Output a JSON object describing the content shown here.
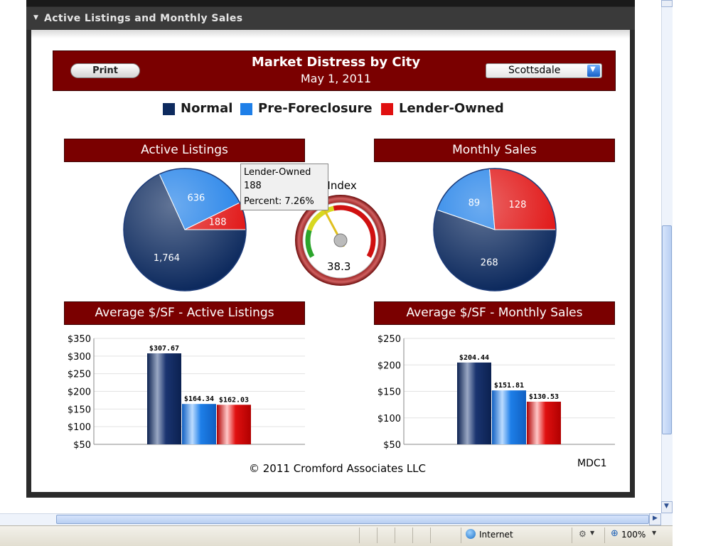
{
  "panel": {
    "title": "Active Listings and Monthly Sales"
  },
  "banner": {
    "print_label": "Print",
    "title": "Market Distress by City",
    "date": "May 1, 2011",
    "city": "Scottsdale"
  },
  "legend": [
    {
      "label": "Normal",
      "color": "#0d2a5e"
    },
    {
      "label": "Pre-Foreclosure",
      "color": "#1e7fe8"
    },
    {
      "label": "Lender-Owned",
      "color": "#e01010"
    }
  ],
  "tooltip": {
    "category": "Lender-Owned",
    "value": "188",
    "percent": "Percent: 7.26%"
  },
  "gauge": {
    "title_fragment": "ss Index",
    "value_text": "38.3",
    "value": 38.3
  },
  "sections": {
    "active_listings": "Active Listings",
    "monthly_sales": "Monthly Sales",
    "avg_active": "Average $/SF - Active Listings",
    "avg_sales": "Average $/SF - Monthly Sales"
  },
  "chart_data": [
    {
      "type": "pie",
      "title": "Active Listings",
      "categories": [
        "Normal",
        "Pre-Foreclosure",
        "Lender-Owned"
      ],
      "values": [
        1764,
        636,
        188
      ],
      "labels": [
        "1,764",
        "636",
        "188"
      ]
    },
    {
      "type": "pie",
      "title": "Monthly Sales",
      "categories": [
        "Normal",
        "Pre-Foreclosure",
        "Lender-Owned"
      ],
      "values": [
        268,
        89,
        128
      ],
      "labels": [
        "268",
        "89",
        "128"
      ]
    },
    {
      "type": "bar",
      "title": "Average $/SF - Active Listings",
      "categories": [
        "Normal",
        "Pre-Foreclosure",
        "Lender-Owned"
      ],
      "values": [
        307.67,
        164.34,
        162.03
      ],
      "labels": [
        "$307.67",
        "$164.34",
        "$162.03"
      ],
      "ylim": [
        50,
        350
      ],
      "yticks": [
        "$350",
        "$300",
        "$250",
        "$200",
        "$150",
        "$100",
        "$50"
      ],
      "ytick_values": [
        350,
        300,
        250,
        200,
        150,
        100,
        50
      ]
    },
    {
      "type": "bar",
      "title": "Average $/SF - Monthly Sales",
      "categories": [
        "Normal",
        "Pre-Foreclosure",
        "Lender-Owned"
      ],
      "values": [
        204.44,
        151.81,
        130.53
      ],
      "labels": [
        "$204.44",
        "$151.81",
        "$130.53"
      ],
      "ylim": [
        50,
        250
      ],
      "yticks": [
        "$250",
        "$200",
        "$150",
        "$100",
        "$50"
      ],
      "ytick_values": [
        250,
        200,
        150,
        100,
        50
      ]
    }
  ],
  "footer": {
    "copyright": "© 2011 Cromford Associates LLC",
    "code": "MDC1"
  },
  "statusbar": {
    "zone": "Internet",
    "zoom": "100%"
  }
}
